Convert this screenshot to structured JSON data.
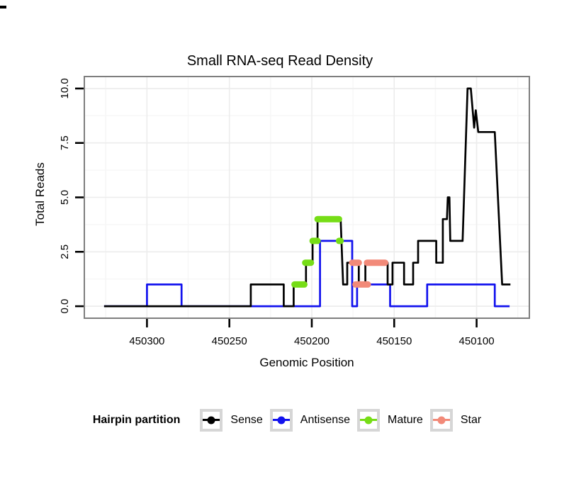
{
  "figure": {
    "title": "Small RNA-seq Read Density",
    "x_axis": {
      "label": "Genomic Position",
      "ticks": [
        "450300",
        "450250",
        "450200",
        "450150",
        "450100"
      ],
      "tick_values": [
        450300,
        450250,
        450200,
        450150,
        450100
      ]
    },
    "y_axis": {
      "label": "Total Reads",
      "ticks": [
        "0.0",
        "2.5",
        "5.0",
        "7.5",
        "10.0"
      ],
      "tick_values": [
        0,
        2.5,
        5,
        7.5,
        10
      ]
    },
    "legend": {
      "title": "Hairpin partition",
      "entries": [
        {
          "label": "Sense",
          "color": "#000000"
        },
        {
          "label": "Antisense",
          "color": "#1212ee"
        },
        {
          "label": "Mature",
          "color": "#76dd16"
        },
        {
          "label": "Star",
          "color": "#f28a79"
        }
      ]
    }
  },
  "chart_data": {
    "type": "line",
    "title": "Small RNA-seq Read Density",
    "xlabel": "Genomic Position",
    "ylabel": "Total Reads",
    "x_reversed": true,
    "xlim": [
      450068,
      450338
    ],
    "ylim": [
      -0.55,
      10.55
    ],
    "x_major_gridlines": [
      450300,
      450250,
      450200,
      450150,
      450100
    ],
    "x_minor_gridlines": [
      450325,
      450275,
      450225,
      450175,
      450125,
      450075
    ],
    "y_major_gridlines": [
      0,
      2.5,
      5,
      7.5,
      10
    ],
    "y_minor_gridlines": [
      1.25,
      3.75,
      6.25,
      8.75
    ],
    "legend_title": "Hairpin partition",
    "legend_position": "bottom",
    "grid": true,
    "series": [
      {
        "name": "Antisense",
        "color": "#1212ee",
        "style": "line",
        "points": [
          [
            450326,
            0
          ],
          [
            450300,
            0
          ],
          [
            450300,
            1
          ],
          [
            450279,
            1
          ],
          [
            450279,
            0
          ],
          [
            450195,
            0
          ],
          [
            450195,
            3
          ],
          [
            450175.5,
            3
          ],
          [
            450175.5,
            0
          ],
          [
            450172.5,
            0
          ],
          [
            450172.5,
            1
          ],
          [
            450152.5,
            1
          ],
          [
            450152.5,
            0
          ],
          [
            450130,
            0
          ],
          [
            450130,
            1
          ],
          [
            450089,
            1
          ],
          [
            450089,
            0
          ],
          [
            450080,
            0
          ]
        ]
      },
      {
        "name": "Sense",
        "color": "#000000",
        "style": "line",
        "points": [
          [
            450326,
            0
          ],
          [
            450237,
            0
          ],
          [
            450237,
            1
          ],
          [
            450217,
            1
          ],
          [
            450217,
            0
          ],
          [
            450211,
            0
          ],
          [
            450211,
            1
          ],
          [
            450203.5,
            1
          ],
          [
            450203.5,
            2
          ],
          [
            450199.5,
            2
          ],
          [
            450199.5,
            3
          ],
          [
            450196.5,
            3
          ],
          [
            450196.5,
            4
          ],
          [
            450182.5,
            4
          ],
          [
            450181,
            1
          ],
          [
            450178.5,
            1
          ],
          [
            450178.5,
            2
          ],
          [
            450171.5,
            2
          ],
          [
            450171.5,
            1
          ],
          [
            450167.5,
            1
          ],
          [
            450167.5,
            2
          ],
          [
            450154,
            2
          ],
          [
            450154,
            1
          ],
          [
            450151,
            1
          ],
          [
            450151,
            2
          ],
          [
            450144,
            2
          ],
          [
            450144,
            1
          ],
          [
            450138.5,
            1
          ],
          [
            450138.5,
            2
          ],
          [
            450135.5,
            2
          ],
          [
            450135.5,
            3
          ],
          [
            450124.5,
            3
          ],
          [
            450124.5,
            2
          ],
          [
            450120.5,
            2
          ],
          [
            450120.5,
            4
          ],
          [
            450118,
            4
          ],
          [
            450117.5,
            5
          ],
          [
            450116.5,
            5
          ],
          [
            450116,
            3
          ],
          [
            450108.5,
            3
          ],
          [
            450105.5,
            10
          ],
          [
            450103.5,
            10
          ],
          [
            450101.5,
            8.2
          ],
          [
            450100.5,
            9
          ],
          [
            450099,
            8
          ],
          [
            450089,
            8
          ],
          [
            450084.5,
            1
          ],
          [
            450079.5,
            1
          ]
        ]
      },
      {
        "name": "Mature",
        "color": "#76dd16",
        "style": "segments",
        "segments": [
          [
            450210.5,
            450204.5,
            1
          ],
          [
            450204,
            450200.5,
            2
          ],
          [
            450199.5,
            450196.5,
            3
          ],
          [
            450196.5,
            450183.5,
            4
          ],
          [
            450183.5,
            450182.5,
            3
          ]
        ]
      },
      {
        "name": "Star",
        "color": "#f28a79",
        "style": "segments",
        "segments": [
          [
            450175.5,
            450171.5,
            2
          ],
          [
            450173.5,
            450166,
            1
          ],
          [
            450166.5,
            450155.5,
            2
          ]
        ]
      }
    ]
  }
}
